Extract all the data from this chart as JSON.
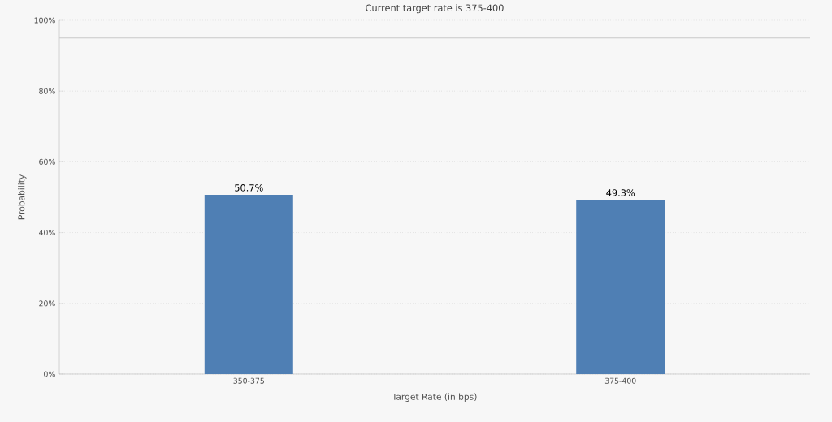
{
  "chart_data": {
    "type": "bar",
    "title": "Current target rate is 375-400",
    "xlabel": "Target Rate (in bps)",
    "ylabel": "Probability",
    "categories": [
      "350-375",
      "375-400"
    ],
    "values": [
      50.7,
      49.3
    ],
    "color": "#4f7fb4",
    "value_labels": [
      "50.7%",
      "49.3%"
    ],
    "ylim": [
      0,
      100
    ],
    "yticks": [
      {
        "value": 0,
        "label": "0%"
      },
      {
        "value": 20,
        "label": "20%"
      },
      {
        "value": 40,
        "label": "40%"
      },
      {
        "value": 60,
        "label": "60%"
      },
      {
        "value": 80,
        "label": "80%"
      },
      {
        "value": 100,
        "label": "100%"
      }
    ],
    "ref_lines": [
      {
        "axis": "y",
        "value": 95,
        "color": "#c8c8c8"
      }
    ],
    "grid": "y"
  }
}
